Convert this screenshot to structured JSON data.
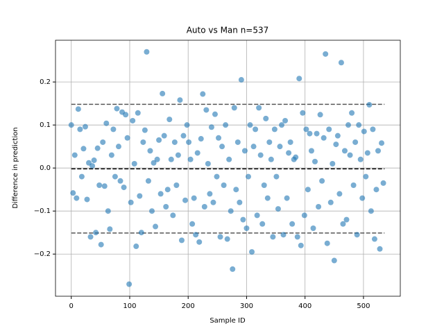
{
  "chart_data": {
    "type": "scatter",
    "title": "Auto vs Man n=537",
    "xlabel": "Sample ID",
    "ylabel": "Difference in prediction",
    "color": "#1f77b4",
    "grid": true,
    "xlim": [
      -27,
      563
    ],
    "ylim": [
      -0.298,
      0.297
    ],
    "xticks": [
      0,
      100,
      200,
      300,
      400,
      500
    ],
    "yticks": [
      {
        "value": -0.2,
        "label": "−0.2"
      },
      {
        "value": -0.1,
        "label": "−0.1"
      },
      {
        "value": 0,
        "label": "0.0"
      },
      0.1,
      0.2
    ],
    "hlines": [
      {
        "y": 0.148,
        "xmin": 0,
        "xmax": 536,
        "color": "#555555"
      },
      {
        "y": -0.002,
        "xmin": 0,
        "xmax": 536,
        "color": "#000000"
      },
      {
        "y": -0.151,
        "xmin": 0,
        "xmax": 536,
        "color": "#555555"
      }
    ],
    "x": [
      0,
      3,
      6,
      9,
      12,
      15,
      18,
      21,
      24,
      27,
      30,
      33,
      36,
      39,
      42,
      45,
      48,
      51,
      54,
      57,
      60,
      63,
      66,
      69,
      72,
      75,
      78,
      81,
      84,
      87,
      90,
      93,
      96,
      99,
      102,
      105,
      108,
      111,
      114,
      117,
      120,
      123,
      126,
      129,
      132,
      135,
      138,
      141,
      144,
      147,
      150,
      153,
      156,
      159,
      162,
      165,
      168,
      171,
      174,
      177,
      180,
      183,
      186,
      189,
      192,
      195,
      198,
      201,
      204,
      207,
      210,
      213,
      216,
      219,
      222,
      225,
      228,
      231,
      234,
      237,
      240,
      243,
      246,
      249,
      252,
      255,
      258,
      261,
      264,
      267,
      270,
      273,
      276,
      279,
      282,
      285,
      288,
      291,
      294,
      297,
      300,
      303,
      306,
      309,
      312,
      315,
      318,
      321,
      324,
      327,
      330,
      333,
      336,
      339,
      342,
      345,
      348,
      351,
      354,
      357,
      360,
      363,
      366,
      369,
      372,
      375,
      378,
      381,
      384,
      387,
      390,
      393,
      396,
      399,
      402,
      405,
      408,
      411,
      414,
      417,
      420,
      423,
      426,
      429,
      432,
      435,
      438,
      441,
      444,
      447,
      450,
      453,
      456,
      459,
      462,
      465,
      468,
      471,
      474,
      477,
      480,
      483,
      486,
      489,
      492,
      495,
      498,
      501,
      504,
      507,
      510,
      513,
      516,
      519,
      522,
      525,
      528,
      531,
      534
    ],
    "values": [
      0.1,
      -0.058,
      0.03,
      -0.07,
      0.137,
      0.09,
      -0.02,
      0.045,
      0.096,
      -0.073,
      0.012,
      -0.16,
      0.005,
      0.018,
      -0.15,
      0.046,
      -0.04,
      -0.178,
      0.06,
      -0.042,
      0.104,
      -0.1,
      -0.142,
      0.03,
      0.09,
      -0.02,
      0.138,
      0.05,
      -0.03,
      0.13,
      -0.045,
      0.124,
      0.07,
      -0.27,
      -0.08,
      0.11,
      0.01,
      -0.182,
      0.128,
      -0.065,
      -0.15,
      0.06,
      0.088,
      0.27,
      -0.03,
      0.04,
      -0.1,
      0.012,
      -0.136,
      0.02,
      0.065,
      -0.06,
      0.173,
      0.075,
      -0.09,
      -0.05,
      0.113,
      0.02,
      -0.11,
      0.06,
      -0.04,
      0.03,
      0.158,
      -0.168,
      0.075,
      -0.075,
      0.1,
      0.06,
      0.02,
      -0.13,
      -0.07,
      -0.155,
      0.035,
      -0.172,
      0.068,
      0.172,
      -0.09,
      0.135,
      0.01,
      -0.06,
      0.095,
      -0.08,
      0.125,
      -0.02,
      0.07,
      -0.16,
      0.05,
      -0.04,
      0.1,
      -0.165,
      0.02,
      -0.1,
      -0.235,
      0.14,
      -0.05,
      0.06,
      -0.08,
      0.205,
      -0.12,
      0.04,
      -0.14,
      -0.02,
      0.1,
      -0.195,
      0.05,
      0.09,
      -0.11,
      0.14,
      0.03,
      -0.13,
      -0.04,
      0.115,
      -0.07,
      0.06,
      0.02,
      -0.16,
      0.09,
      -0.02,
      -0.095,
      0.05,
      0.1,
      -0.155,
      0.11,
      -0.07,
      0.035,
      0.06,
      -0.13,
      0.02,
      0.025,
      -0.16,
      0.208,
      -0.18,
      0.128,
      -0.11,
      0.09,
      -0.05,
      0.08,
      0.04,
      -0.14,
      0.015,
      0.08,
      -0.09,
      0.124,
      -0.03,
      0.07,
      0.265,
      -0.175,
      0.09,
      -0.08,
      0.01,
      -0.215,
      0.055,
      0.075,
      -0.06,
      0.245,
      -0.13,
      0.04,
      -0.12,
      0.1,
      0.03,
      0.128,
      -0.04,
      0.06,
      -0.155,
      0.1,
      0.02,
      -0.07,
      0.085,
      -0.02,
      0.035,
      0.147,
      -0.1,
      0.09,
      -0.165,
      -0.05,
      0.04,
      -0.188,
      0.058,
      -0.035
    ]
  }
}
